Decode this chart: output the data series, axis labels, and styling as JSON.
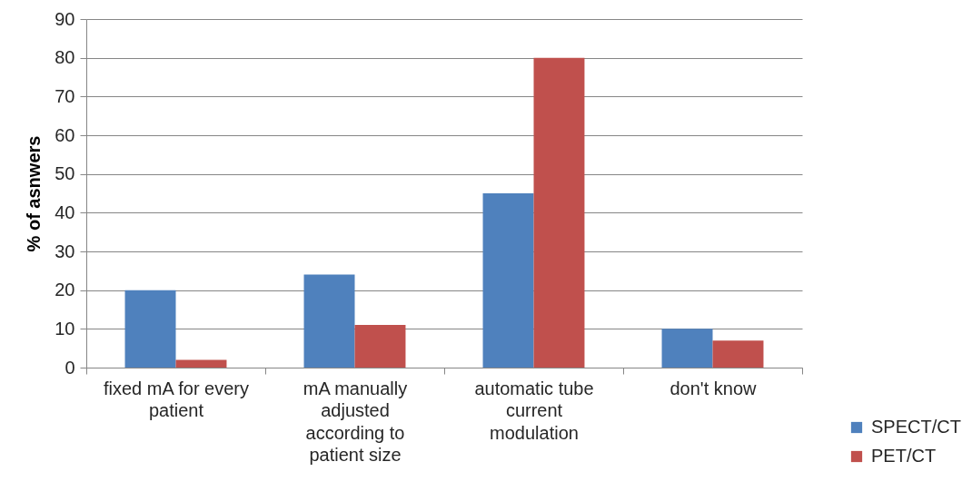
{
  "chart_data": {
    "type": "bar",
    "ylabel": "% of asnwers",
    "categories": [
      "fixed mA for every patient",
      "mA manually adjusted according to patient size",
      "automatic tube current modulation",
      "don't know"
    ],
    "series": [
      {
        "name": "SPECT/CT",
        "color": "#4f81bd",
        "values": [
          20,
          24,
          45,
          10
        ]
      },
      {
        "name": "PET/CT",
        "color": "#c0504d",
        "values": [
          2,
          11,
          80,
          7
        ]
      }
    ],
    "ylim": [
      0,
      90
    ],
    "yticks": [
      0,
      10,
      20,
      30,
      40,
      50,
      60,
      70,
      80,
      90
    ],
    "grid": "y",
    "legend": "bottom right"
  }
}
